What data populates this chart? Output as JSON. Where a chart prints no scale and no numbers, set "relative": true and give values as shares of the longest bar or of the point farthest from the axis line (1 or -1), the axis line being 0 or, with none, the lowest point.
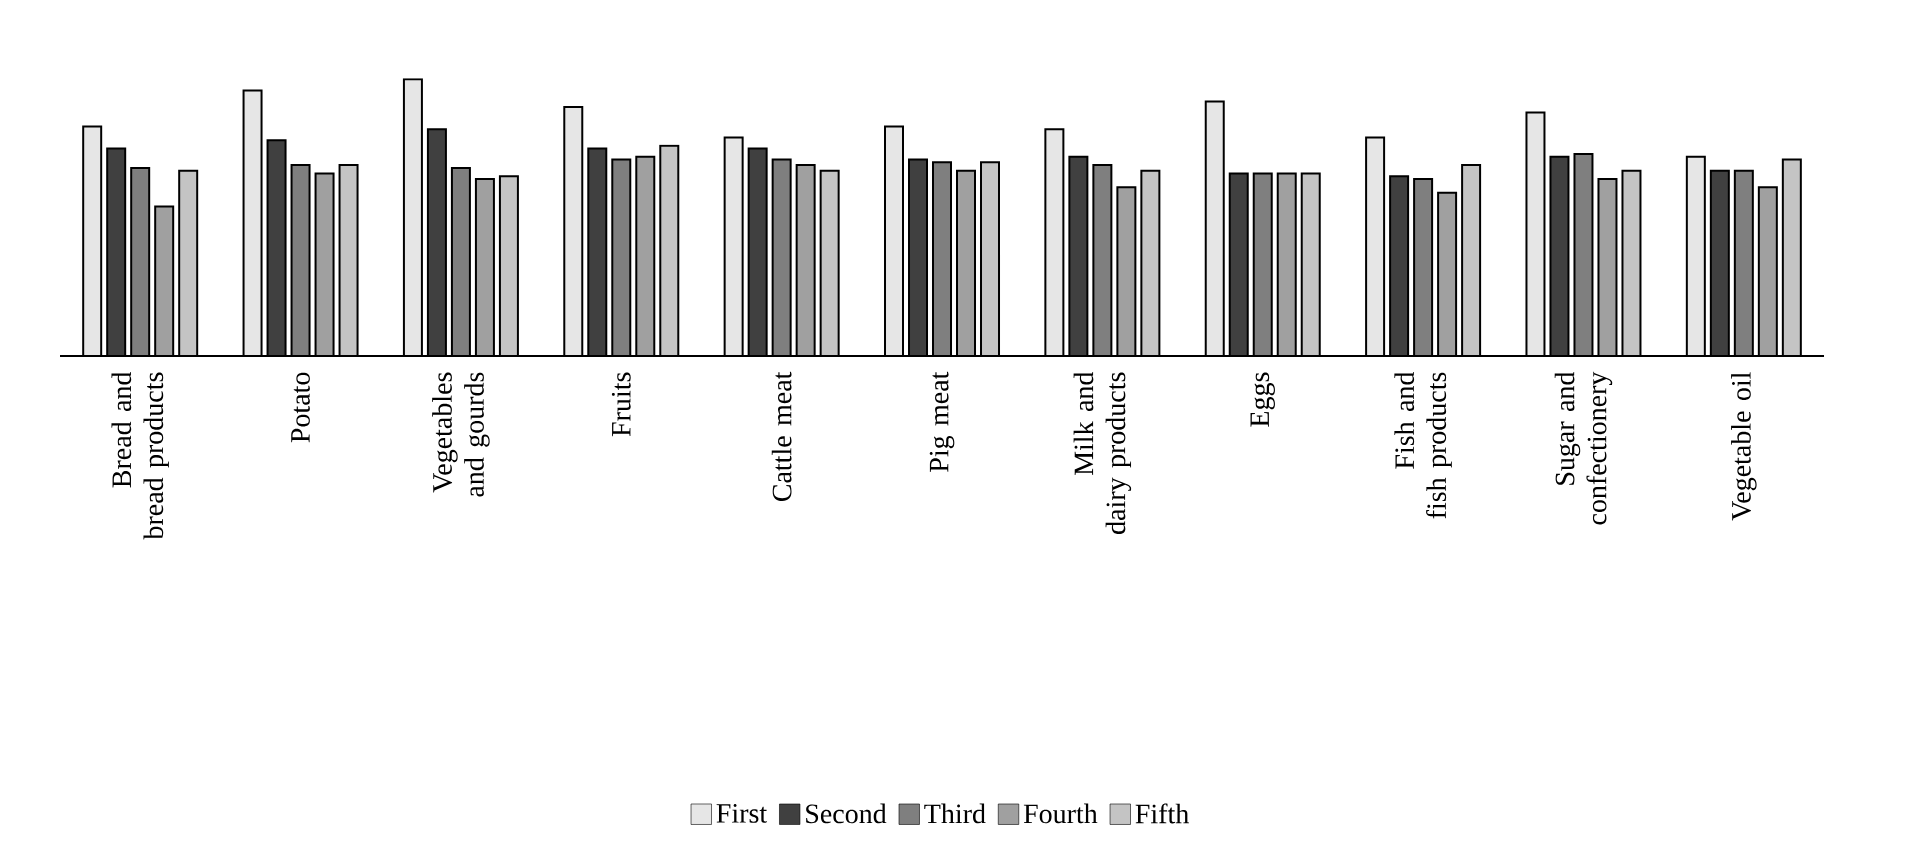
{
  "chart_data": {
    "type": "bar",
    "relative": true,
    "legend": "bottom",
    "categories": [
      "Bread and bread products",
      "Potato",
      "Vegetables and gourds",
      "Fruits",
      "Cattle meat",
      "Pig meat",
      "Milk and dairy products",
      "Eggs",
      "Fish and fish products",
      "Sugar and confectionery",
      "Vegetable oil"
    ],
    "series": [
      {
        "name": "First",
        "color": "#e6e6e6",
        "values": [
          0.83,
          0.96,
          1,
          0.9,
          0.79,
          0.83,
          0.82,
          0.92,
          0.79,
          0.88,
          0.72
        ]
      },
      {
        "name": "Second",
        "color": "#404040",
        "values": [
          0.75,
          0.78,
          0.82,
          0.75,
          0.75,
          0.71,
          0.72,
          0.66,
          0.65,
          0.72,
          0.67
        ]
      },
      {
        "name": "Third",
        "color": "#7f7f7f",
        "values": [
          0.68,
          0.69,
          0.68,
          0.71,
          0.71,
          0.7,
          0.69,
          0.66,
          0.64,
          0.73,
          0.67
        ]
      },
      {
        "name": "Fourth",
        "color": "#a0a0a0",
        "values": [
          0.54,
          0.66,
          0.64,
          0.72,
          0.69,
          0.67,
          0.61,
          0.66,
          0.59,
          0.64,
          0.61
        ]
      },
      {
        "name": "Fifth",
        "color": "#c4c4c4",
        "values": [
          0.67,
          0.69,
          0.65,
          0.76,
          0.67,
          0.7,
          0.67,
          0.66,
          0.69,
          0.67,
          0.71
        ]
      }
    ]
  }
}
